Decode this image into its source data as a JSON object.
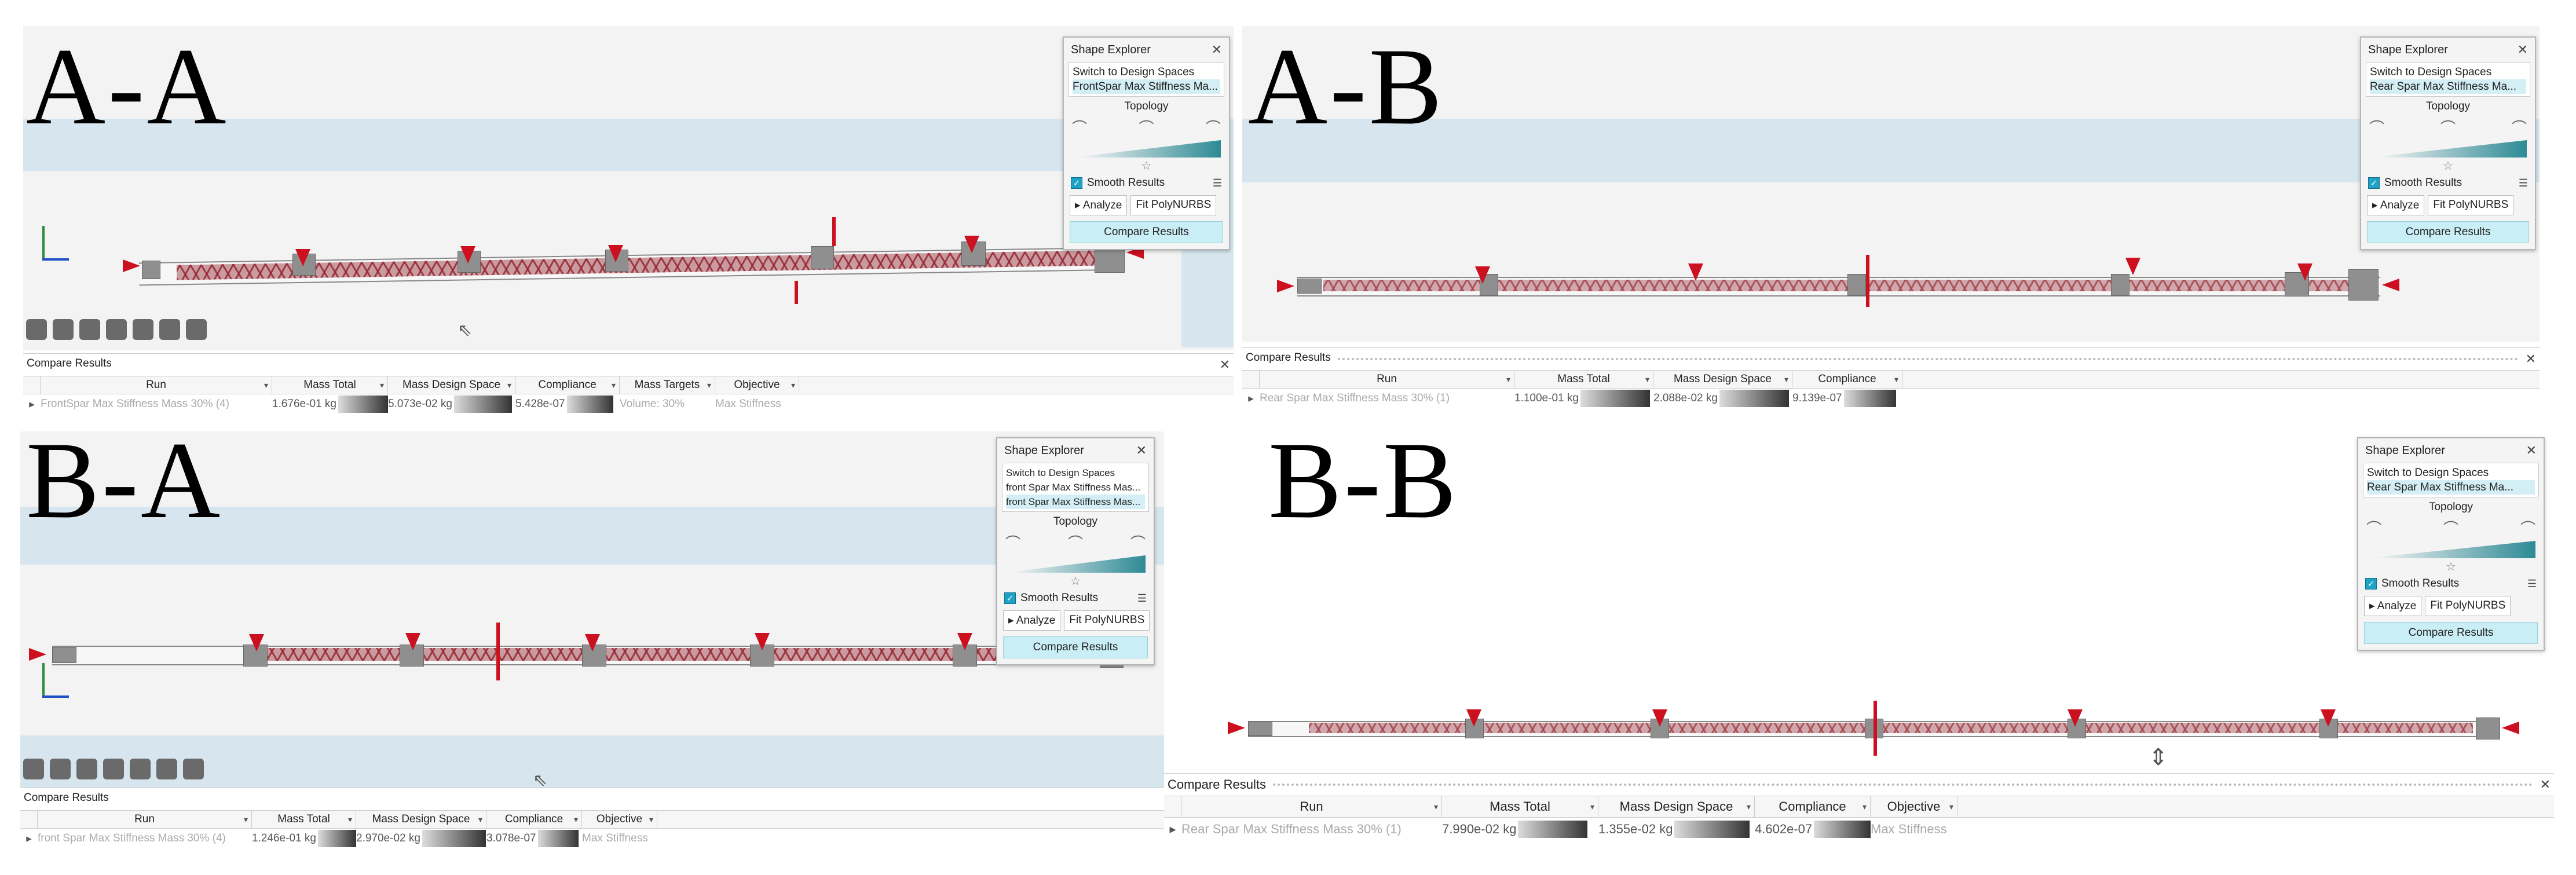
{
  "quadrants": [
    {
      "label": "A-A",
      "shape_explorer": {
        "title": "Shape Explorer",
        "items": [
          "Switch to Design Spaces",
          "FrontSpar Max Stiffness Ma..."
        ],
        "topology": "Topology",
        "smooth": "Smooth Results",
        "analyze": "Analyze",
        "fit": "Fit PolyNURBS",
        "compare": "Compare Results"
      },
      "compare": {
        "title": "Compare Results",
        "columns": [
          "Run",
          "Mass Total",
          "Mass Design Space",
          "Compliance",
          "Mass Targets",
          "Objective"
        ],
        "row": [
          "FrontSpar Max Stiffness Mass 30% (4)",
          "1.676e-01 kg",
          "5.073e-02 kg",
          "5.428e-07",
          "Volume: 30%",
          "Max Stiffness"
        ]
      }
    },
    {
      "label": "A-B",
      "shape_explorer": {
        "title": "Shape Explorer",
        "items": [
          "Switch to Design Spaces",
          "Rear Spar Max Stiffness Ma..."
        ],
        "topology": "Topology",
        "smooth": "Smooth Results",
        "analyze": "Analyze",
        "fit": "Fit PolyNURBS",
        "compare": "Compare Results"
      },
      "compare": {
        "title": "Compare Results",
        "columns": [
          "Run",
          "Mass Total",
          "Mass Design Space",
          "Compliance"
        ],
        "row": [
          "Rear Spar Max Stiffness Mass 30% (1)",
          "1.100e-01 kg",
          "2.088e-02 kg",
          "9.139e-07"
        ]
      }
    },
    {
      "label": "B-A",
      "shape_explorer": {
        "title": "Shape Explorer",
        "items": [
          "Switch to Design Spaces",
          "front Spar Max Stiffness Mas...",
          "front Spar Max Stiffness Mas..."
        ],
        "topology": "Topology",
        "smooth": "Smooth Results",
        "analyze": "Analyze",
        "fit": "Fit PolyNURBS",
        "compare": "Compare Results"
      },
      "compare": {
        "title": "Compare Results",
        "columns": [
          "Run",
          "Mass Total",
          "Mass Design Space",
          "Compliance",
          "Objective"
        ],
        "row": [
          "front Spar Max Stiffness Mass 30% (4)",
          "1.246e-01 kg",
          "2.970e-02 kg",
          "3.078e-07",
          "Max Stiffness"
        ]
      }
    },
    {
      "label": "B-B",
      "shape_explorer": {
        "title": "Shape Explorer",
        "items": [
          "Switch to Design Spaces",
          "Rear Spar Max Stiffness Ma..."
        ],
        "topology": "Topology",
        "smooth": "Smooth Results",
        "analyze": "Analyze",
        "fit": "Fit PolyNURBS",
        "compare": "Compare Results"
      },
      "compare": {
        "title": "Compare Results",
        "columns": [
          "Run",
          "Mass Total",
          "Mass Design Space",
          "Compliance",
          "Objective"
        ],
        "row": [
          "Rear Spar Max Stiffness Mass 30% (1)",
          "7.990e-02 kg",
          "1.355e-02 kg",
          "4.602e-07",
          "Max Stiffness"
        ]
      }
    }
  ],
  "colors": {
    "viewport_band": "#d7e6ee",
    "support_marker": "#cc1020",
    "lattice": "#963228",
    "compare_button": "#c9eef5",
    "checkbox": "#1ea3c6"
  }
}
